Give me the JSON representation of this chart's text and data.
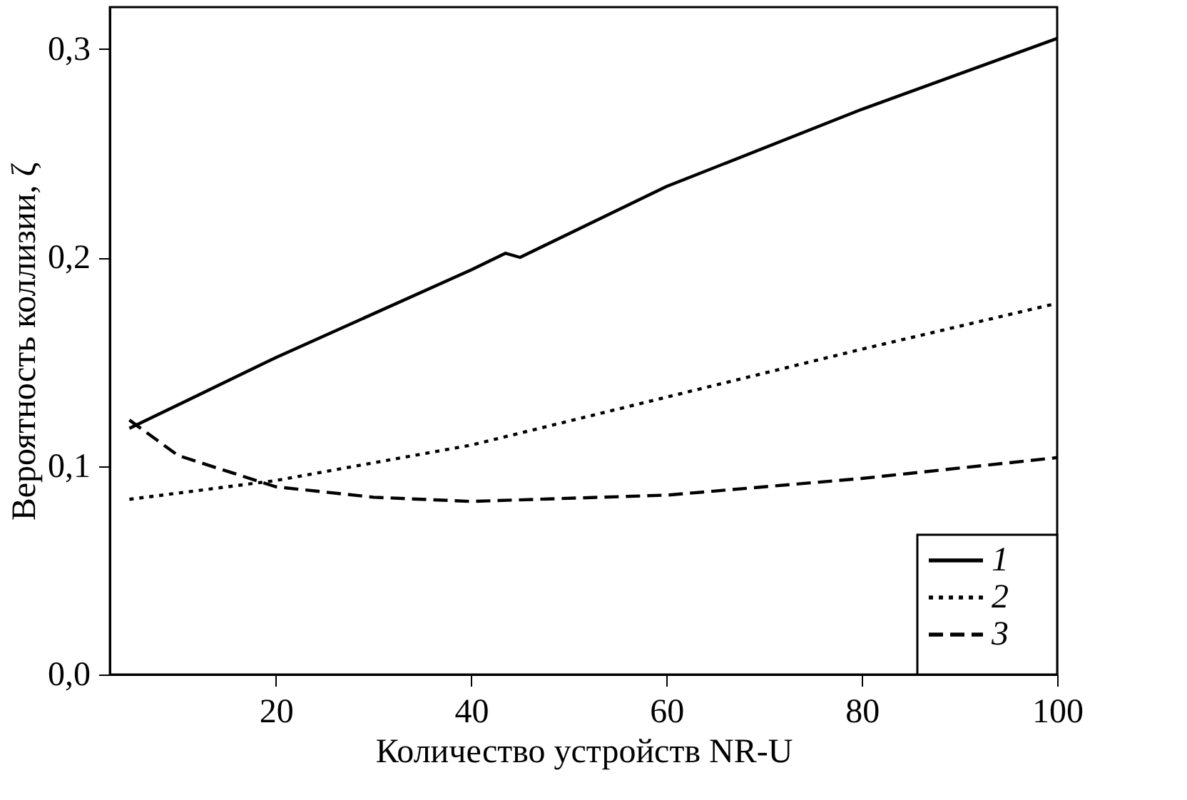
{
  "chart_data": {
    "type": "line",
    "xlabel": "Количество устройств NR-U",
    "ylabel": "Вероятность коллизии, ζ",
    "xlim": [
      3,
      100
    ],
    "xticks": [
      20,
      40,
      60,
      80,
      100
    ],
    "ylim": [
      0,
      0.32
    ],
    "yticks": [
      {
        "value": 0,
        "label": "0,0"
      },
      {
        "value": 0.1,
        "label": "0,1"
      },
      {
        "value": 0.2,
        "label": "0,2"
      },
      {
        "value": 0.3,
        "label": "0,3"
      }
    ],
    "grid": false,
    "legend": "bottom right",
    "marker": "none",
    "series": [
      {
        "name": "1",
        "color": "#000000",
        "line_style": "solid",
        "x": [
          5,
          20,
          40,
          43.5,
          45,
          60,
          80,
          100
        ],
        "values": [
          0.118,
          0.152,
          0.194,
          0.202,
          0.2,
          0.234,
          0.271,
          0.305
        ]
      },
      {
        "name": "2",
        "color": "#000000",
        "line_style": "dotted",
        "x": [
          5,
          20,
          40,
          60,
          80,
          100
        ],
        "values": [
          0.084,
          0.093,
          0.11,
          0.133,
          0.156,
          0.178
        ]
      },
      {
        "name": "3",
        "color": "#000000",
        "line_style": "dashed",
        "x": [
          5,
          10,
          20,
          30,
          40,
          60,
          80,
          100
        ],
        "values": [
          0.122,
          0.105,
          0.09,
          0.085,
          0.083,
          0.086,
          0.094,
          0.104
        ]
      }
    ]
  }
}
